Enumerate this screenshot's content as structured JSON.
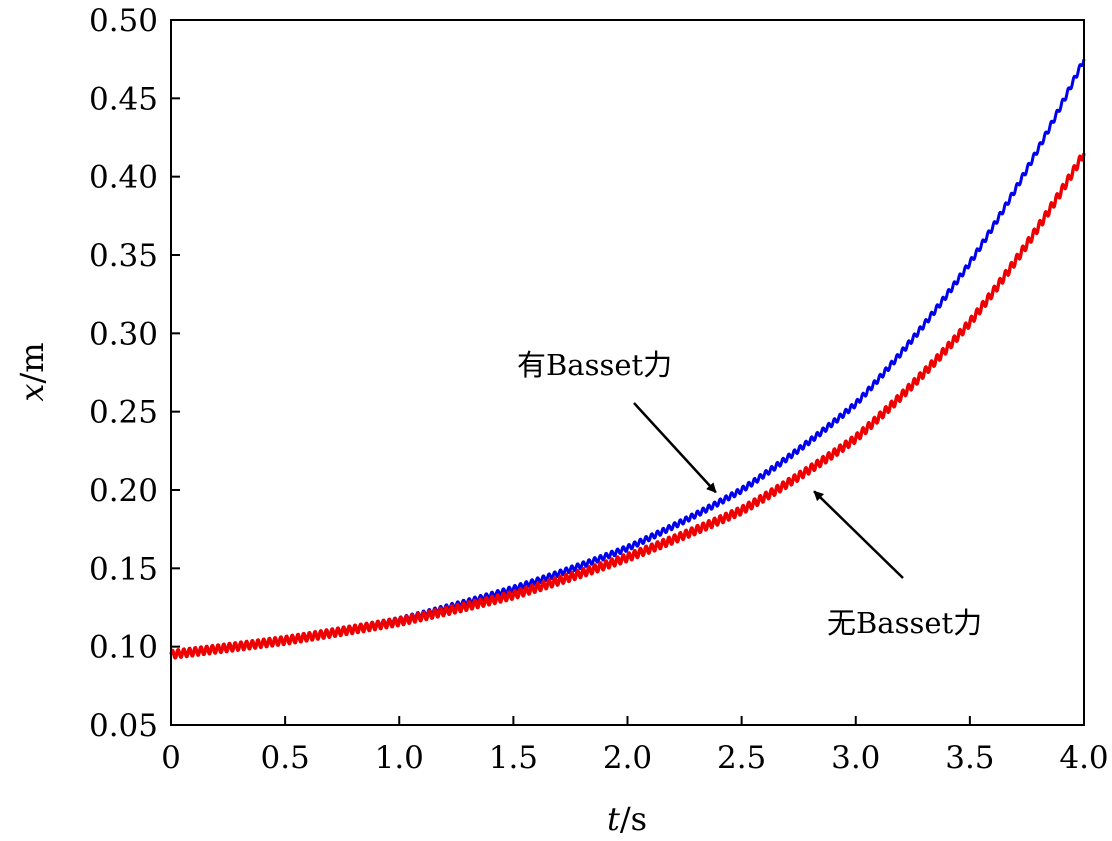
{
  "chart_data": {
    "type": "line",
    "xlabel_var": "t",
    "xlabel_unit": "/s",
    "ylabel_var": "x",
    "ylabel_unit": "/m",
    "xlim": [
      0,
      4.0
    ],
    "ylim": [
      0.05,
      0.5
    ],
    "xticks": [
      0,
      0.5,
      1.0,
      1.5,
      2.0,
      2.5,
      3.0,
      3.5,
      4.0
    ],
    "xtick_labels": [
      "0",
      "0.5",
      "1.0",
      "1.5",
      "2.0",
      "2.5",
      "3.0",
      "3.5",
      "4.0"
    ],
    "yticks": [
      0.05,
      0.1,
      0.15,
      0.2,
      0.25,
      0.3,
      0.35,
      0.4,
      0.45,
      0.5
    ],
    "ytick_labels": [
      "0.05",
      "0.10",
      "0.15",
      "0.20",
      "0.25",
      "0.30",
      "0.35",
      "0.40",
      "0.45",
      "0.50"
    ],
    "grid": false,
    "series": [
      {
        "color": "#0000ee",
        "x": [
          0,
          0.5,
          1.0,
          1.5,
          2.0,
          2.5,
          3.0,
          3.5,
          4.0
        ],
        "y": [
          0.095,
          0.104,
          0.117,
          0.137,
          0.163,
          0.2,
          0.255,
          0.345,
          0.475
        ]
      },
      {
        "color": "#ee0000",
        "x": [
          0,
          0.5,
          1.0,
          1.5,
          2.0,
          2.5,
          3.0,
          3.5,
          4.0
        ],
        "y": [
          0.095,
          0.104,
          0.116,
          0.133,
          0.157,
          0.187,
          0.233,
          0.307,
          0.415
        ]
      }
    ],
    "annotations": [
      {
        "text": "有Basset力",
        "points_to_x": 2.4,
        "points_to_y": 0.196
      },
      {
        "text": "无Basset力",
        "points_to_x": 2.8,
        "points_to_y": 0.203
      }
    ]
  }
}
